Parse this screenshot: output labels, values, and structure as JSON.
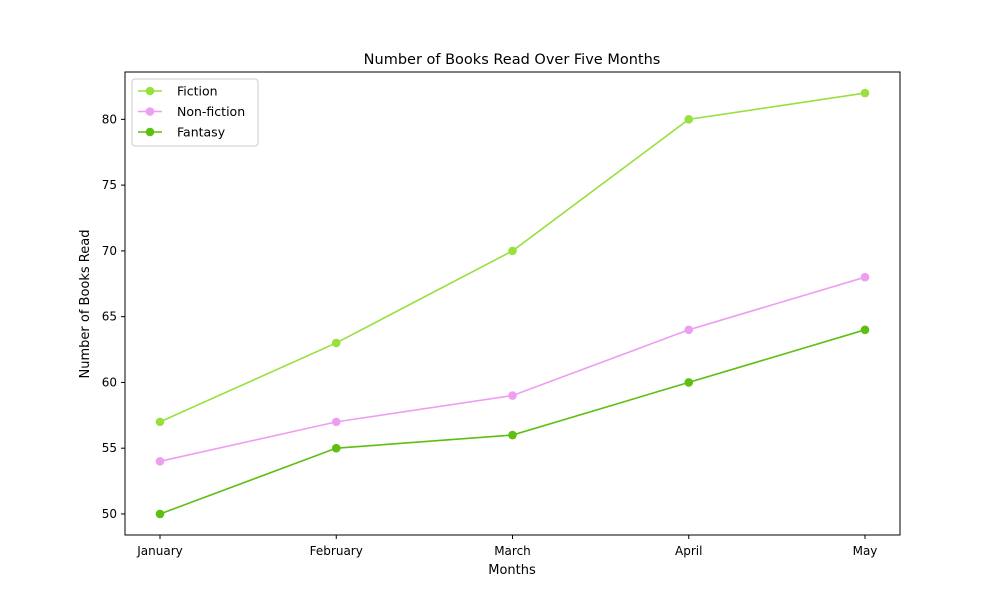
{
  "chart_data": {
    "type": "line",
    "title": "Number of Books Read Over Five Months",
    "xlabel": "Months",
    "ylabel": "Number of Books Read",
    "categories": [
      "January",
      "February",
      "March",
      "April",
      "May"
    ],
    "ylim": [
      48.4,
      83.6
    ],
    "yticks": [
      50,
      55,
      60,
      65,
      70,
      75,
      80
    ],
    "grid": false,
    "legend_position": "top-left",
    "series": [
      {
        "name": "Fiction",
        "values": [
          57,
          63,
          70,
          80,
          82
        ],
        "color": "#98e03d"
      },
      {
        "name": "Non-fiction",
        "values": [
          54,
          57,
          59,
          64,
          68
        ],
        "color": "#ee9ef0"
      },
      {
        "name": "Fantasy",
        "values": [
          50,
          55,
          56,
          60,
          64
        ],
        "color": "#5dbf12"
      }
    ]
  }
}
